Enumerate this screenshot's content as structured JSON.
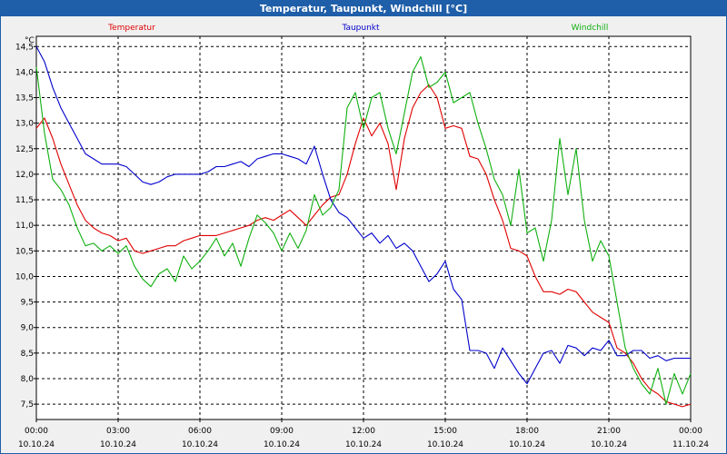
{
  "window": {
    "title": "Temperatur, Taupunkt, Windchill [°C]"
  },
  "colors": {
    "temperatur": "#e00000",
    "taupunkt": "#0000cc",
    "windchill": "#10b010"
  },
  "chart_data": {
    "type": "line",
    "title": "Temperatur, Taupunkt, Windchill [°C]",
    "ylabel": "°C",
    "xlabel": "",
    "ylim": [
      7.2,
      14.7
    ],
    "xlim": [
      0,
      24
    ],
    "grid": true,
    "legend": "top",
    "y_ticks": [
      "14,5",
      "14,0",
      "13,5",
      "13,0",
      "12,5",
      "12,0",
      "11,5",
      "11,0",
      "10,5",
      "10,0",
      "9,5",
      "9,0",
      "8,5",
      "8,0",
      "7,5"
    ],
    "y_tick_values": [
      14.5,
      14.0,
      13.5,
      13.0,
      12.5,
      12.0,
      11.5,
      11.0,
      10.5,
      10.0,
      9.5,
      9.0,
      8.5,
      8.0,
      7.5
    ],
    "x_ticks": [
      {
        "time": "00:00",
        "date": "10.10.24",
        "hour": 0
      },
      {
        "time": "03:00",
        "date": "10.10.24",
        "hour": 3
      },
      {
        "time": "06:00",
        "date": "10.10.24",
        "hour": 6
      },
      {
        "time": "09:00",
        "date": "10.10.24",
        "hour": 9
      },
      {
        "time": "12:00",
        "date": "10.10.24",
        "hour": 12
      },
      {
        "time": "15:00",
        "date": "10.10.24",
        "hour": 15
      },
      {
        "time": "18:00",
        "date": "10.10.24",
        "hour": 18
      },
      {
        "time": "21:00",
        "date": "10.10.24",
        "hour": 21
      },
      {
        "time": "00:00",
        "date": "11.10.24",
        "hour": 24
      }
    ],
    "series": [
      {
        "name": "Temperatur",
        "x": [
          0,
          0.3,
          0.6,
          0.9,
          1.2,
          1.5,
          1.8,
          2.1,
          2.4,
          2.7,
          3.0,
          3.3,
          3.6,
          3.9,
          4.2,
          4.5,
          4.8,
          5.1,
          5.4,
          5.7,
          6.0,
          6.3,
          6.6,
          6.9,
          7.2,
          7.5,
          7.8,
          8.1,
          8.4,
          8.7,
          9.0,
          9.3,
          9.6,
          9.9,
          10.2,
          10.5,
          10.8,
          11.1,
          11.4,
          11.7,
          12.0,
          12.3,
          12.6,
          12.9,
          13.2,
          13.5,
          13.8,
          14.1,
          14.4,
          14.7,
          15.0,
          15.3,
          15.6,
          15.9,
          16.2,
          16.5,
          16.8,
          17.1,
          17.4,
          17.7,
          18.0,
          18.3,
          18.6,
          18.9,
          19.2,
          19.5,
          19.8,
          20.1,
          20.4,
          20.7,
          21.0,
          21.3,
          21.6,
          21.9,
          22.2,
          22.5,
          22.8,
          23.1,
          23.4,
          23.7,
          24.0
        ],
        "values": [
          12.9,
          13.1,
          12.7,
          12.2,
          11.8,
          11.4,
          11.1,
          10.95,
          10.85,
          10.8,
          10.7,
          10.75,
          10.5,
          10.45,
          10.5,
          10.55,
          10.6,
          10.6,
          10.7,
          10.75,
          10.8,
          10.8,
          10.8,
          10.85,
          10.9,
          10.95,
          11.0,
          11.1,
          11.15,
          11.1,
          11.2,
          11.3,
          11.15,
          11.0,
          11.2,
          11.4,
          11.55,
          11.6,
          12.0,
          12.6,
          13.1,
          12.75,
          13.0,
          12.6,
          11.7,
          12.7,
          13.3,
          13.6,
          13.75,
          13.5,
          12.9,
          12.95,
          12.9,
          12.35,
          12.3,
          12.0,
          11.5,
          11.1,
          10.55,
          10.5,
          10.4,
          10.0,
          9.7,
          9.7,
          9.65,
          9.75,
          9.7,
          9.5,
          9.3,
          9.2,
          9.1,
          8.6,
          8.5,
          8.3,
          8.0,
          7.8,
          7.7,
          7.55,
          7.5,
          7.45,
          7.5
        ]
      },
      {
        "name": "Taupunkt",
        "x": [
          0,
          0.3,
          0.6,
          0.9,
          1.2,
          1.5,
          1.8,
          2.1,
          2.4,
          2.7,
          3.0,
          3.3,
          3.6,
          3.9,
          4.2,
          4.5,
          4.8,
          5.1,
          5.4,
          5.7,
          6.0,
          6.3,
          6.6,
          6.9,
          7.2,
          7.5,
          7.8,
          8.1,
          8.4,
          8.7,
          9.0,
          9.3,
          9.6,
          9.9,
          10.2,
          10.5,
          10.8,
          11.1,
          11.4,
          11.7,
          12.0,
          12.3,
          12.6,
          12.9,
          13.2,
          13.5,
          13.8,
          14.1,
          14.4,
          14.7,
          15.0,
          15.3,
          15.6,
          15.9,
          16.2,
          16.5,
          16.8,
          17.1,
          17.4,
          17.7,
          18.0,
          18.3,
          18.6,
          18.9,
          19.2,
          19.5,
          19.8,
          20.1,
          20.4,
          20.7,
          21.0,
          21.3,
          21.6,
          21.9,
          22.2,
          22.5,
          22.8,
          23.1,
          23.4,
          23.7,
          24.0
        ],
        "values": [
          14.5,
          14.2,
          13.7,
          13.3,
          13.0,
          12.7,
          12.4,
          12.3,
          12.2,
          12.2,
          12.2,
          12.15,
          12.0,
          11.85,
          11.8,
          11.85,
          11.95,
          12.0,
          12.0,
          12.0,
          12.0,
          12.05,
          12.15,
          12.15,
          12.2,
          12.25,
          12.15,
          12.3,
          12.35,
          12.4,
          12.4,
          12.35,
          12.3,
          12.2,
          12.55,
          12.0,
          11.5,
          11.25,
          11.15,
          10.95,
          10.75,
          10.85,
          10.65,
          10.8,
          10.55,
          10.65,
          10.5,
          10.2,
          9.9,
          10.05,
          10.3,
          9.75,
          9.55,
          8.55,
          8.55,
          8.5,
          8.2,
          8.6,
          8.35,
          8.1,
          7.9,
          8.2,
          8.5,
          8.55,
          8.3,
          8.65,
          8.6,
          8.45,
          8.6,
          8.55,
          8.75,
          8.45,
          8.45,
          8.55,
          8.55,
          8.4,
          8.45,
          8.35,
          8.4,
          8.4,
          8.4
        ]
      },
      {
        "name": "Windchill",
        "x": [
          0,
          0.3,
          0.6,
          0.9,
          1.2,
          1.5,
          1.8,
          2.1,
          2.4,
          2.7,
          3.0,
          3.3,
          3.6,
          3.9,
          4.2,
          4.5,
          4.8,
          5.1,
          5.4,
          5.7,
          6.0,
          6.3,
          6.6,
          6.9,
          7.2,
          7.5,
          7.8,
          8.1,
          8.4,
          8.7,
          9.0,
          9.3,
          9.6,
          9.9,
          10.2,
          10.5,
          10.8,
          11.1,
          11.4,
          11.7,
          12.0,
          12.3,
          12.6,
          12.9,
          13.2,
          13.5,
          13.8,
          14.1,
          14.4,
          14.7,
          15.0,
          15.3,
          15.6,
          15.9,
          16.2,
          16.5,
          16.8,
          17.1,
          17.4,
          17.7,
          18.0,
          18.3,
          18.6,
          18.9,
          19.2,
          19.5,
          19.8,
          20.1,
          20.4,
          20.7,
          21.0,
          21.3,
          21.6,
          21.9,
          22.2,
          22.5,
          22.8,
          23.1,
          23.4,
          23.7,
          24.0
        ],
        "values": [
          14.1,
          12.8,
          11.9,
          11.7,
          11.4,
          10.95,
          10.6,
          10.65,
          10.5,
          10.6,
          10.45,
          10.6,
          10.2,
          9.95,
          9.8,
          10.05,
          10.15,
          9.9,
          10.4,
          10.15,
          10.3,
          10.5,
          10.75,
          10.4,
          10.65,
          10.2,
          10.75,
          11.2,
          11.05,
          10.85,
          10.5,
          10.85,
          10.55,
          10.9,
          11.6,
          11.2,
          11.35,
          11.7,
          13.3,
          13.6,
          12.9,
          13.5,
          13.6,
          12.9,
          12.4,
          13.2,
          14.0,
          14.3,
          13.7,
          13.8,
          14.0,
          13.4,
          13.5,
          13.6,
          13.0,
          12.5,
          11.9,
          11.6,
          11.0,
          12.1,
          10.85,
          10.95,
          10.3,
          11.1,
          12.7,
          11.6,
          12.5,
          11.1,
          10.3,
          10.7,
          10.4,
          9.5,
          8.6,
          8.2,
          7.9,
          7.7,
          8.2,
          7.5,
          8.1,
          7.7,
          8.1
        ]
      }
    ]
  }
}
